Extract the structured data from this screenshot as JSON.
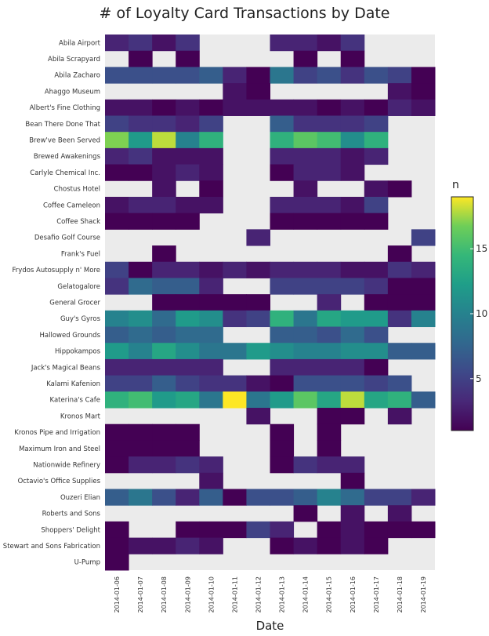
{
  "chart_data": {
    "type": "heatmap",
    "title": "# of Loyalty Card Transactions by Date",
    "xlabel": "Date",
    "ylabel": "",
    "legend_title": "n",
    "legend_placement": "right",
    "color_scale": "viridis",
    "zlim": [
      1,
      19
    ],
    "legend_ticks": [
      5,
      10,
      15
    ],
    "empty_cell_color": "#ebebeb",
    "x": [
      "2014-01-06",
      "2014-01-07",
      "2014-01-08",
      "2014-01-09",
      "2014-01-10",
      "2014-01-11",
      "2014-01-12",
      "2014-01-13",
      "2014-01-14",
      "2014-01-15",
      "2014-01-16",
      "2014-01-17",
      "2014-01-18",
      "2014-01-19"
    ],
    "y": [
      "Abila Airport",
      "Abila Scrapyard",
      "Abila Zacharo",
      "Ahaggo Museum",
      "Albert's Fine Clothing",
      "Bean There Done That",
      "Brew've Been Served",
      "Brewed Awakenings",
      "Carlyle Chemical Inc.",
      "Chostus Hotel",
      "Coffee Cameleon",
      "Coffee Shack",
      "Desafio Golf Course",
      "Frank's Fuel",
      "Frydos Autosupply n' More",
      "Gelatogalore",
      "General Grocer",
      "Guy's Gyros",
      "Hallowed Grounds",
      "Hippokampos",
      "Jack's Magical Beans",
      "Kalami Kafenion",
      "Katerina's Cafe",
      "Kronos Mart",
      "Kronos Pipe and Irrigation",
      "Maximum Iron and Steel",
      "Nationwide Refinery",
      "Octavio's Office Supplies",
      "Ouzeri Elian",
      "Roberts and Sons",
      "Shoppers' Delight",
      "Stewart and Sons Fabrication",
      "U-Pump"
    ],
    "z": [
      [
        3,
        4,
        2,
        4,
        null,
        null,
        null,
        3,
        3,
        2,
        4,
        null,
        null,
        null
      ],
      [
        null,
        1,
        null,
        1,
        null,
        null,
        null,
        null,
        1,
        null,
        1,
        null,
        null,
        null
      ],
      [
        6,
        6,
        6,
        6,
        7,
        3,
        1,
        9,
        5,
        6,
        4,
        6,
        5,
        1
      ],
      [
        null,
        null,
        null,
        null,
        null,
        2,
        1,
        null,
        null,
        null,
        null,
        null,
        2,
        1
      ],
      [
        2,
        2,
        1,
        2,
        1,
        2,
        2,
        2,
        2,
        1,
        2,
        1,
        3,
        2
      ],
      [
        5,
        4,
        4,
        3,
        5,
        null,
        null,
        7,
        4,
        4,
        4,
        5,
        null,
        null
      ],
      [
        17,
        12,
        18,
        10,
        14,
        null,
        null,
        14,
        16,
        15,
        11,
        14,
        null,
        null
      ],
      [
        3,
        4,
        2,
        2,
        2,
        null,
        null,
        3,
        3,
        3,
        2,
        3,
        null,
        null
      ],
      [
        1,
        1,
        2,
        3,
        2,
        null,
        null,
        1,
        3,
        3,
        2,
        null,
        null,
        null
      ],
      [
        null,
        null,
        2,
        null,
        1,
        null,
        null,
        null,
        2,
        null,
        null,
        2,
        1,
        null
      ],
      [
        2,
        3,
        3,
        2,
        2,
        null,
        null,
        3,
        3,
        3,
        2,
        5,
        null,
        null
      ],
      [
        1,
        1,
        1,
        1,
        null,
        null,
        null,
        1,
        1,
        1,
        1,
        1,
        null,
        null
      ],
      [
        null,
        null,
        null,
        null,
        null,
        null,
        3,
        null,
        null,
        null,
        null,
        null,
        null,
        5
      ],
      [
        null,
        null,
        1,
        null,
        null,
        null,
        null,
        null,
        null,
        null,
        null,
        null,
        1,
        null
      ],
      [
        5,
        1,
        3,
        3,
        2,
        3,
        2,
        3,
        3,
        3,
        2,
        2,
        4,
        3
      ],
      [
        4,
        8,
        7,
        7,
        3,
        null,
        null,
        5,
        5,
        5,
        5,
        4,
        1,
        1
      ],
      [
        null,
        null,
        1,
        1,
        1,
        1,
        1,
        null,
        null,
        3,
        null,
        1,
        1,
        1
      ],
      [
        10,
        11,
        8,
        12,
        11,
        4,
        5,
        14,
        9,
        13,
        12,
        12,
        4,
        10
      ],
      [
        7,
        8,
        7,
        8,
        8,
        null,
        null,
        7,
        7,
        6,
        8,
        6,
        null,
        null
      ],
      [
        12,
        10,
        13,
        11,
        9,
        9,
        12,
        11,
        10,
        10,
        11,
        11,
        7,
        7
      ],
      [
        3,
        3,
        3,
        3,
        3,
        null,
        null,
        3,
        3,
        3,
        3,
        1,
        null,
        null
      ],
      [
        5,
        5,
        7,
        5,
        4,
        4,
        2,
        1,
        6,
        6,
        6,
        5,
        6,
        null
      ],
      [
        14,
        15,
        12,
        13,
        9,
        19,
        9,
        12,
        16,
        13,
        18,
        13,
        14,
        7
      ],
      [
        null,
        null,
        null,
        null,
        null,
        null,
        2,
        null,
        null,
        1,
        1,
        null,
        2,
        null
      ],
      [
        1,
        1,
        1,
        1,
        null,
        null,
        null,
        1,
        null,
        1,
        null,
        null,
        null,
        null
      ],
      [
        1,
        1,
        1,
        1,
        null,
        null,
        null,
        1,
        null,
        1,
        null,
        null,
        null,
        null
      ],
      [
        1,
        3,
        3,
        4,
        3,
        null,
        null,
        1,
        4,
        3,
        3,
        null,
        null,
        null
      ],
      [
        null,
        null,
        null,
        null,
        2,
        null,
        null,
        null,
        null,
        null,
        1,
        null,
        null,
        null
      ],
      [
        7,
        9,
        6,
        3,
        7,
        1,
        6,
        6,
        7,
        10,
        8,
        5,
        5,
        3
      ],
      [
        null,
        null,
        null,
        null,
        null,
        null,
        null,
        null,
        1,
        null,
        2,
        null,
        2,
        null
      ],
      [
        1,
        null,
        null,
        1,
        1,
        1,
        5,
        3,
        null,
        1,
        2,
        1,
        1,
        1
      ],
      [
        1,
        2,
        2,
        3,
        2,
        null,
        null,
        1,
        2,
        1,
        2,
        1,
        null,
        null
      ],
      [
        1,
        null,
        null,
        null,
        null,
        null,
        null,
        null,
        null,
        null,
        null,
        null,
        null,
        null
      ]
    ]
  }
}
